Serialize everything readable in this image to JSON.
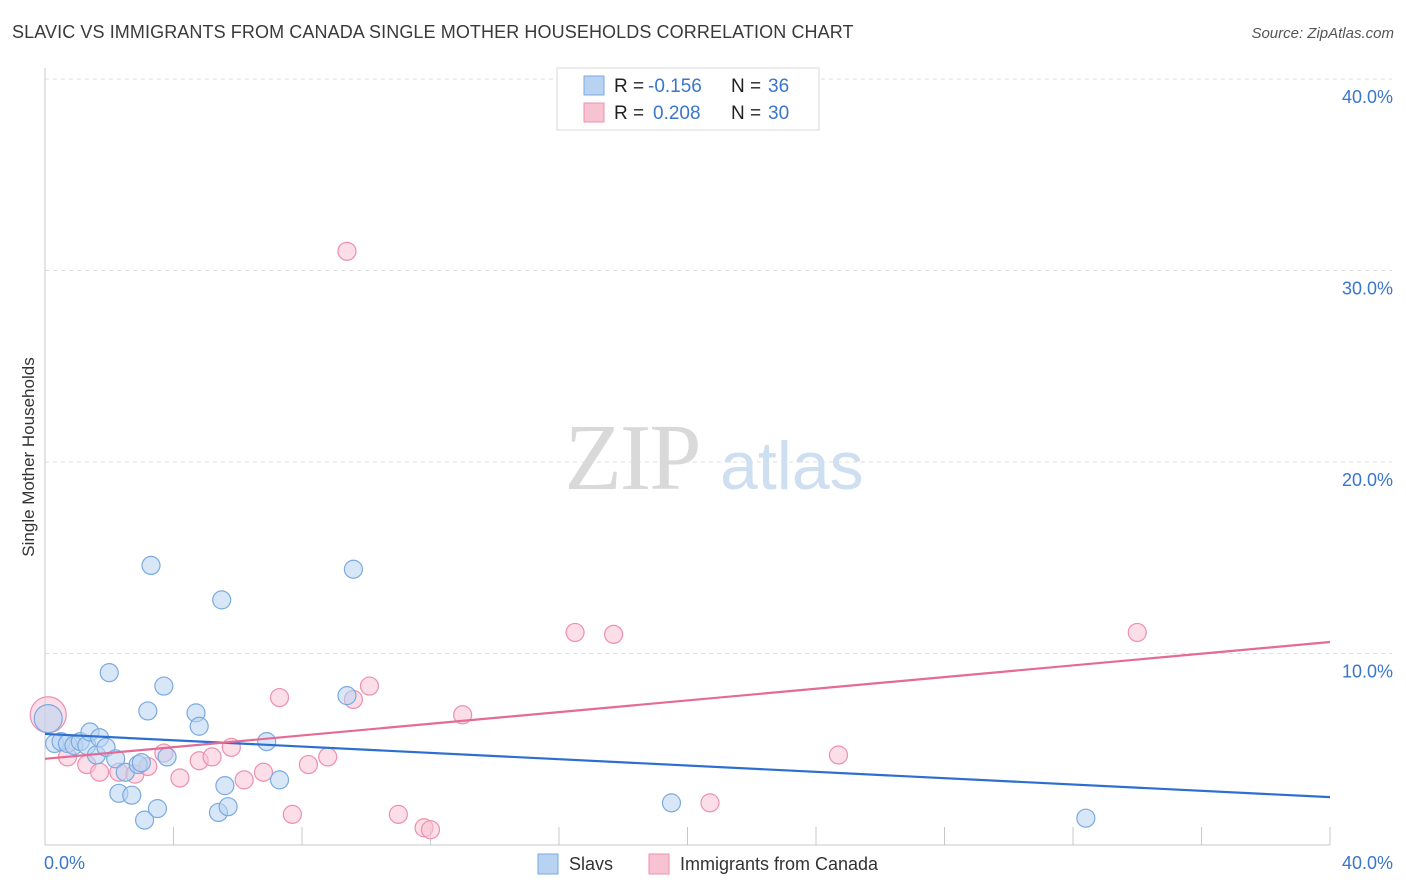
{
  "header": {
    "title": "SLAVIC VS IMMIGRANTS FROM CANADA SINGLE MOTHER HOUSEHOLDS CORRELATION CHART",
    "source": "Source: ZipAtlas.com"
  },
  "watermark": {
    "zip": "ZIP",
    "atlas": "atlas"
  },
  "stats_legend": {
    "r_label": "R =",
    "n_label": "N =",
    "rows": [
      {
        "r": "-0.156",
        "n": "36"
      },
      {
        "r": "0.208",
        "n": "30"
      }
    ]
  },
  "colors": {
    "slavs_fill": "#b8d3f2",
    "slavs_stroke": "#7aaae0",
    "slavs_line": "#2d6fcf",
    "canada_fill": "#f7c3d3",
    "canada_stroke": "#ec90ae",
    "canada_line": "#e36b96",
    "value_text": "#3a76cc",
    "grid": "#dddddd"
  },
  "chart_data": {
    "type": "scatter",
    "title": "SLAVIC VS IMMIGRANTS FROM CANADA SINGLE MOTHER HOUSEHOLDS CORRELATION CHART",
    "xlabel": "",
    "ylabel": "Single Mother Households",
    "xlim": [
      0,
      40
    ],
    "ylim": [
      0,
      40
    ],
    "x_tick_labels": [
      "0.0%",
      "40.0%"
    ],
    "y_ticks": [
      {
        "value": 10,
        "label": "10.0%"
      },
      {
        "value": 20,
        "label": "20.0%"
      },
      {
        "value": 30,
        "label": "30.0%"
      },
      {
        "value": 40,
        "label": "40.0%"
      }
    ],
    "grid": true,
    "legend": "bottom-center",
    "series": [
      {
        "name": "Slavs",
        "r": -0.156,
        "n": 36,
        "trend": {
          "x0": 0,
          "y0": 5.8,
          "x1": 40,
          "y1": 2.5
        },
        "points": [
          {
            "x": 0.1,
            "y": 6.6,
            "s": 14
          },
          {
            "x": 0.3,
            "y": 5.3,
            "s": 9
          },
          {
            "x": 0.5,
            "y": 5.4,
            "s": 9
          },
          {
            "x": 0.7,
            "y": 5.3,
            "s": 9
          },
          {
            "x": 0.9,
            "y": 5.2,
            "s": 9
          },
          {
            "x": 1.1,
            "y": 5.4,
            "s": 9
          },
          {
            "x": 1.3,
            "y": 5.2,
            "s": 9
          },
          {
            "x": 1.4,
            "y": 5.9,
            "s": 9
          },
          {
            "x": 1.6,
            "y": 4.7,
            "s": 9
          },
          {
            "x": 1.7,
            "y": 5.6,
            "s": 9
          },
          {
            "x": 1.9,
            "y": 5.1,
            "s": 9
          },
          {
            "x": 2.0,
            "y": 9.0,
            "s": 9
          },
          {
            "x": 2.2,
            "y": 4.5,
            "s": 9
          },
          {
            "x": 2.3,
            "y": 2.7,
            "s": 9
          },
          {
            "x": 2.5,
            "y": 3.8,
            "s": 9
          },
          {
            "x": 2.7,
            "y": 2.6,
            "s": 9
          },
          {
            "x": 2.9,
            "y": 4.2,
            "s": 9
          },
          {
            "x": 3.1,
            "y": 1.3,
            "s": 9
          },
          {
            "x": 3.2,
            "y": 7.0,
            "s": 9
          },
          {
            "x": 3.3,
            "y": 14.6,
            "s": 9
          },
          {
            "x": 3.5,
            "y": 1.9,
            "s": 9
          },
          {
            "x": 3.7,
            "y": 8.3,
            "s": 9
          },
          {
            "x": 3.8,
            "y": 4.6,
            "s": 9
          },
          {
            "x": 4.7,
            "y": 6.9,
            "s": 9
          },
          {
            "x": 4.8,
            "y": 6.2,
            "s": 9
          },
          {
            "x": 5.4,
            "y": 1.7,
            "s": 9
          },
          {
            "x": 5.5,
            "y": 12.8,
            "s": 9
          },
          {
            "x": 5.6,
            "y": 3.1,
            "s": 9
          },
          {
            "x": 5.7,
            "y": 2.0,
            "s": 9
          },
          {
            "x": 6.9,
            "y": 5.4,
            "s": 9
          },
          {
            "x": 7.3,
            "y": 3.4,
            "s": 9
          },
          {
            "x": 9.4,
            "y": 7.8,
            "s": 9
          },
          {
            "x": 9.6,
            "y": 14.4,
            "s": 9
          },
          {
            "x": 19.5,
            "y": 2.2,
            "s": 9
          },
          {
            "x": 32.4,
            "y": 1.4,
            "s": 9
          },
          {
            "x": 3.0,
            "y": 4.3,
            "s": 9
          }
        ]
      },
      {
        "name": "Immigrants from Canada",
        "r": 0.208,
        "n": 30,
        "trend": {
          "x0": 0,
          "y0": 4.5,
          "x1": 40,
          "y1": 10.6
        },
        "points": [
          {
            "x": 0.1,
            "y": 6.8,
            "s": 18
          },
          {
            "x": 0.7,
            "y": 4.6,
            "s": 9
          },
          {
            "x": 1.3,
            "y": 4.2,
            "s": 9
          },
          {
            "x": 1.7,
            "y": 3.8,
            "s": 9
          },
          {
            "x": 2.3,
            "y": 3.8,
            "s": 9
          },
          {
            "x": 2.8,
            "y": 3.7,
            "s": 9
          },
          {
            "x": 3.2,
            "y": 4.1,
            "s": 9
          },
          {
            "x": 3.7,
            "y": 4.8,
            "s": 9
          },
          {
            "x": 4.2,
            "y": 3.5,
            "s": 9
          },
          {
            "x": 4.8,
            "y": 4.4,
            "s": 9
          },
          {
            "x": 5.2,
            "y": 4.6,
            "s": 9
          },
          {
            "x": 5.8,
            "y": 5.1,
            "s": 9
          },
          {
            "x": 6.2,
            "y": 3.4,
            "s": 9
          },
          {
            "x": 6.8,
            "y": 3.8,
            "s": 9
          },
          {
            "x": 7.3,
            "y": 7.7,
            "s": 9
          },
          {
            "x": 7.7,
            "y": 1.6,
            "s": 9
          },
          {
            "x": 8.2,
            "y": 4.2,
            "s": 9
          },
          {
            "x": 8.8,
            "y": 4.6,
            "s": 9
          },
          {
            "x": 9.4,
            "y": 31.0,
            "s": 9
          },
          {
            "x": 9.6,
            "y": 7.6,
            "s": 9
          },
          {
            "x": 10.1,
            "y": 8.3,
            "s": 9
          },
          {
            "x": 11.0,
            "y": 1.6,
            "s": 9
          },
          {
            "x": 11.8,
            "y": 0.9,
            "s": 9
          },
          {
            "x": 12.0,
            "y": 0.8,
            "s": 9
          },
          {
            "x": 13.0,
            "y": 6.8,
            "s": 9
          },
          {
            "x": 16.5,
            "y": 11.1,
            "s": 9
          },
          {
            "x": 17.7,
            "y": 11.0,
            "s": 9
          },
          {
            "x": 20.7,
            "y": 2.2,
            "s": 9
          },
          {
            "x": 24.7,
            "y": 4.7,
            "s": 9
          },
          {
            "x": 34.0,
            "y": 11.1,
            "s": 9
          }
        ]
      }
    ]
  }
}
